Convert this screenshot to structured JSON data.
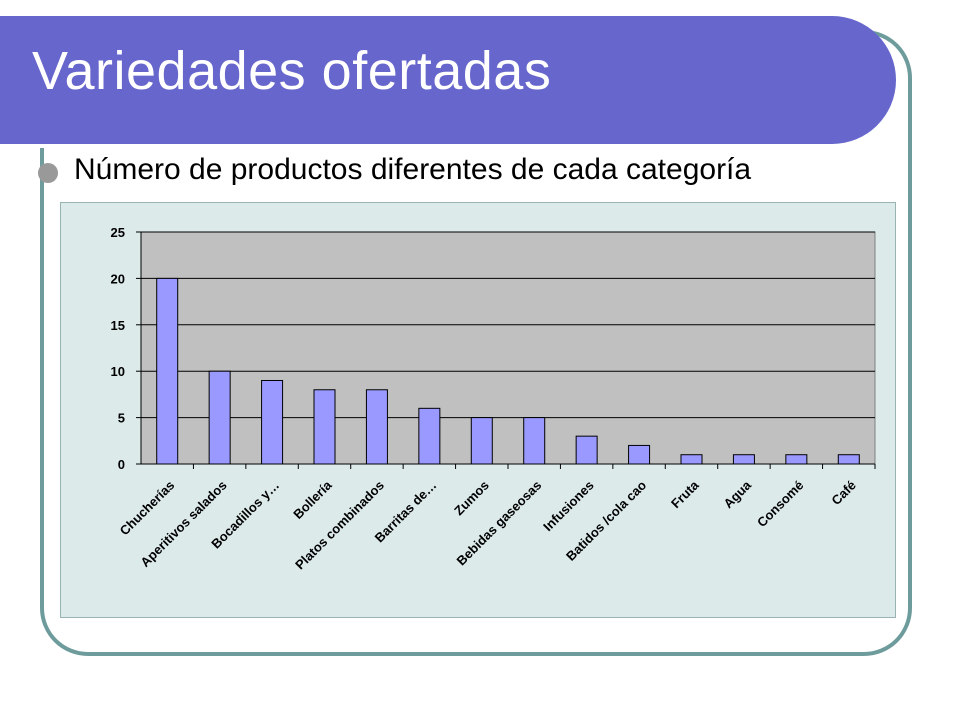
{
  "slide": {
    "title": "Variedades ofertadas",
    "bullet": "Número de productos diferentes de cada categoría"
  },
  "colors": {
    "title_bar": "#6666cc",
    "frame": "#6e9b9b",
    "plot_bg": "#c0c0c0",
    "chart_bg": "#ddeaea",
    "bar_fill": "#9999ff"
  },
  "chart_data": {
    "type": "bar",
    "title": "",
    "xlabel": "",
    "ylabel": "",
    "categories": [
      "Chucherías",
      "Aperitivos salados",
      "Bocadillos y…",
      "Bollería",
      "Platos combinados",
      "Barritas de…",
      "Zumos",
      "Bebidas gaseosas",
      "Infusiones",
      "Batidos /cola cao",
      "Fruta",
      "Agua",
      "Consomé",
      "Café"
    ],
    "values": [
      20,
      10,
      9,
      8,
      8,
      6,
      5,
      5,
      3,
      2,
      1,
      1,
      1,
      1
    ],
    "ylim": [
      0,
      25
    ],
    "yticks": [
      0,
      5,
      10,
      15,
      20,
      25
    ],
    "grid": true,
    "legend": "none"
  }
}
